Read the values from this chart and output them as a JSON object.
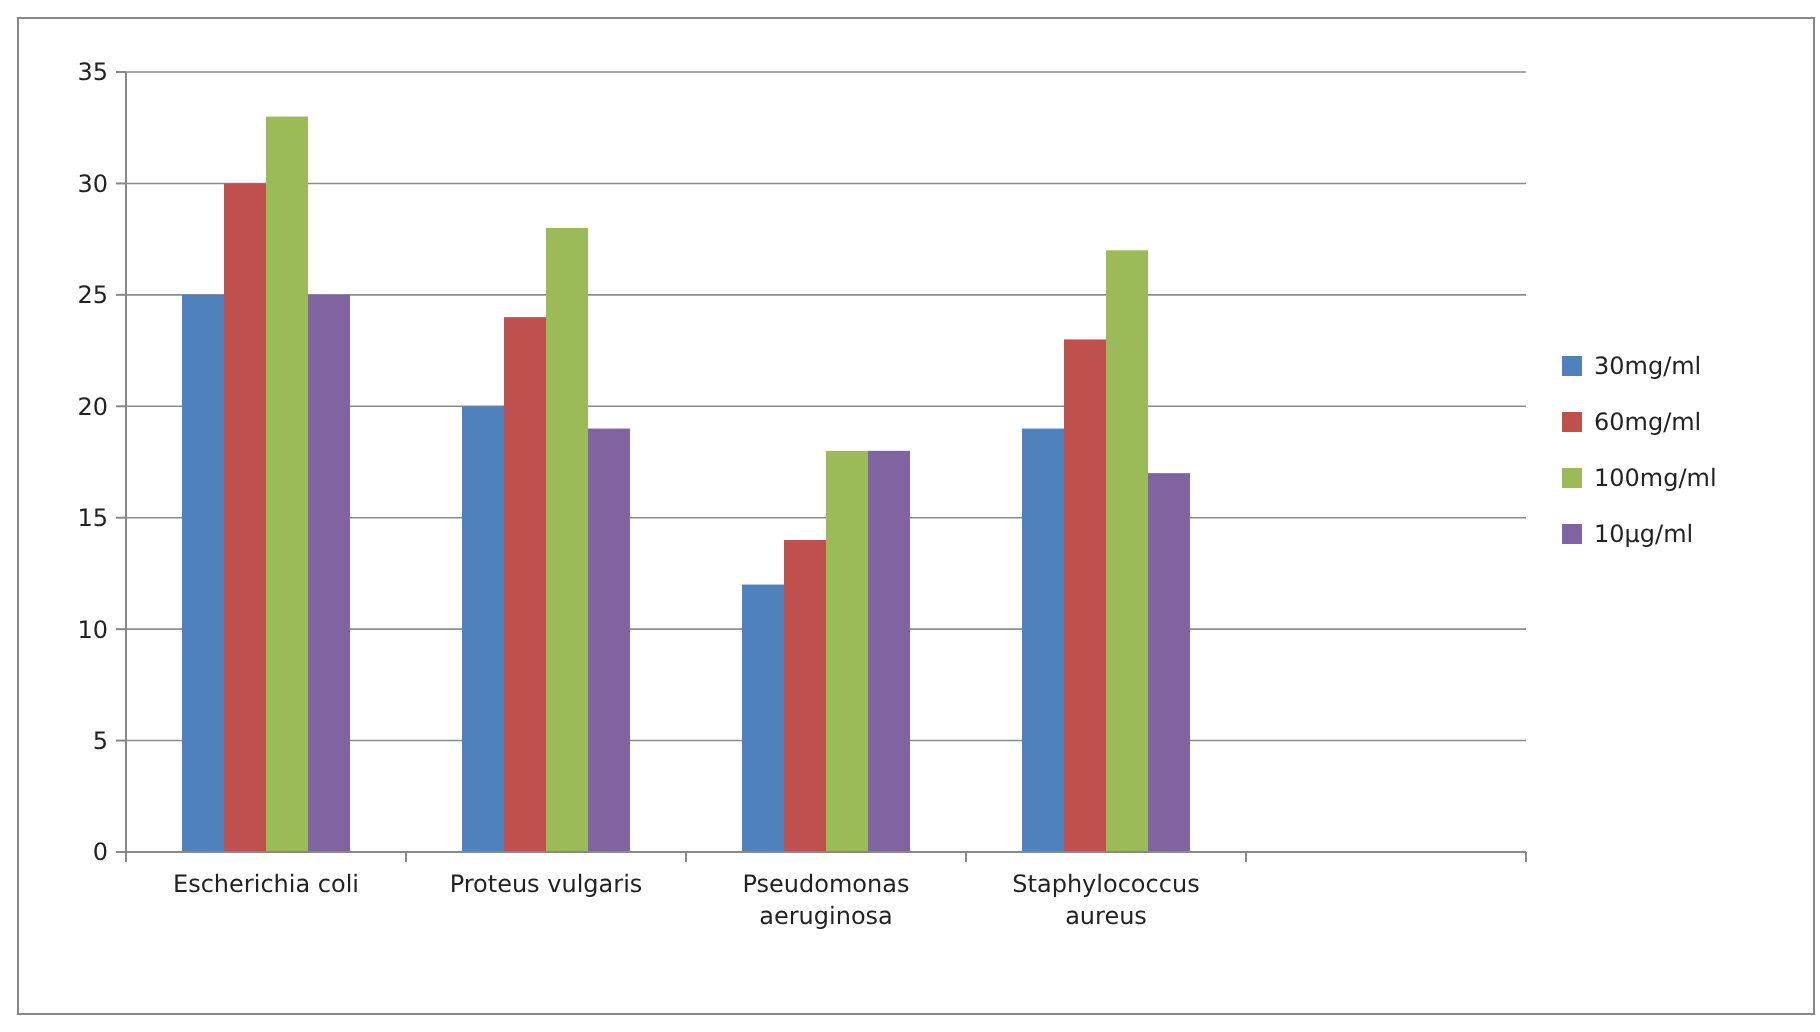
{
  "chart_data": {
    "type": "bar",
    "categories": [
      "Escherichia coli",
      "Proteus vulgaris",
      "Pseudomonas aeruginosa",
      "Staphylococcus aureus",
      null
    ],
    "series": [
      {
        "name": "30mg/ml",
        "color": "#4f81bd",
        "values": [
          25,
          20,
          12,
          19,
          null
        ]
      },
      {
        "name": "60mg/ml",
        "color": "#c0504d",
        "values": [
          30,
          24,
          14,
          23,
          null
        ]
      },
      {
        "name": "100mg/ml",
        "color": "#9bbb59",
        "values": [
          33,
          28,
          18,
          27,
          null
        ]
      },
      {
        "name": "10µg/ml",
        "color": "#8064a2",
        "values": [
          25,
          19,
          18,
          17,
          null
        ]
      }
    ],
    "ylim": [
      0,
      35
    ],
    "yticks": [
      0,
      5,
      10,
      15,
      20,
      25,
      30,
      35
    ],
    "grid": "y",
    "legend": "right"
  }
}
